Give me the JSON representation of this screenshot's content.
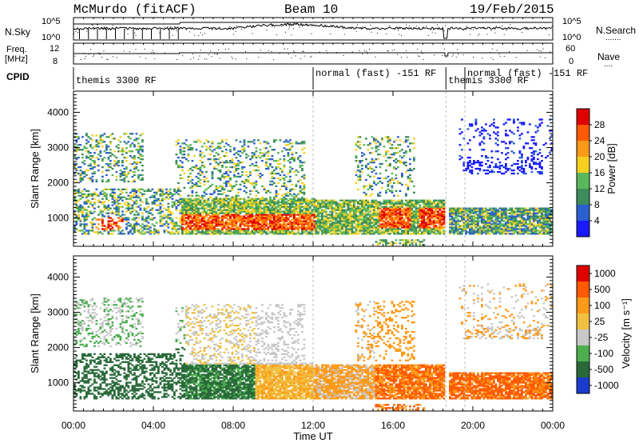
{
  "header": {
    "station": "McMurdo (fitACF)",
    "beam": "Beam 10",
    "date": "19/Feb/2015"
  },
  "top_panels": {
    "nsky_label": "N.Sky",
    "nsearch_label": "N.Search",
    "freq_label_1": "Freq.",
    "freq_label_2": "[MHz]",
    "nave_label": "Nave",
    "cpid_label": "CPID",
    "nsky_ticks": [
      "10^5",
      "10^0"
    ],
    "nsearch_ticks": [
      "10^5",
      "10^0"
    ],
    "freq_ticks": [
      "12",
      "8"
    ],
    "nave_ticks": [
      "60",
      "0"
    ],
    "cpid_segments": [
      {
        "label": "themis 3300 RF",
        "start_h": 0.0,
        "end_h": 12.0
      },
      {
        "label": "normal (fast) -151 RF",
        "start_h": 12.0,
        "end_h": 18.65
      },
      {
        "label": "themis 3300 RF",
        "start_h": 18.65,
        "end_h": 19.6
      },
      {
        "label": "normal (fast) -151 RF",
        "start_h": 19.6,
        "end_h": 24.0
      }
    ]
  },
  "colors": {
    "power": [
      "#1a1aff",
      "#2c5fd0",
      "#3c8c5c",
      "#5ab85c",
      "#f5d020",
      "#ff9a1a",
      "#ff5a00",
      "#e00000"
    ],
    "velocity": [
      "#1a3ccc",
      "#2a6a3a",
      "#4caf50",
      "#c8c8c8",
      "#f0c040",
      "#ff9a1a",
      "#ff5a00",
      "#e00000"
    ]
  },
  "chart_data": [
    {
      "type": "heatmap",
      "name": "power",
      "ylabel": "Slant Range [km]",
      "colorbar_label": "Power [dB]",
      "colorbar_ticks": [
        "28",
        "24",
        "20",
        "16",
        "12",
        "8",
        "4"
      ],
      "colorbar_levels": [
        0,
        4,
        8,
        12,
        16,
        20,
        24,
        28,
        32
      ],
      "y_ticks": [
        1000,
        2000,
        3000,
        4000
      ],
      "ylim": [
        200,
        4600
      ],
      "xlim_h": [
        0,
        24
      ]
    },
    {
      "type": "heatmap",
      "name": "velocity",
      "ylabel": "Slant Range [km]",
      "colorbar_label": "Velocity [m s⁻¹]",
      "colorbar_ticks": [
        "1000",
        "500",
        "100",
        "25",
        "-25",
        "-100",
        "-500",
        "-1000"
      ],
      "y_ticks": [
        1000,
        2000,
        3000,
        4000
      ],
      "ylim": [
        200,
        4600
      ],
      "xlim_h": [
        0,
        24
      ]
    }
  ],
  "xaxis": {
    "label": "Time UT",
    "ticks": [
      {
        "h": 0,
        "label": "00:00"
      },
      {
        "h": 4,
        "label": "04:00"
      },
      {
        "h": 8,
        "label": "08:00"
      },
      {
        "h": 12,
        "label": "12:00"
      },
      {
        "h": 16,
        "label": "16:00"
      },
      {
        "h": 20,
        "label": "20:00"
      },
      {
        "h": 24,
        "label": "00:00"
      }
    ]
  }
}
